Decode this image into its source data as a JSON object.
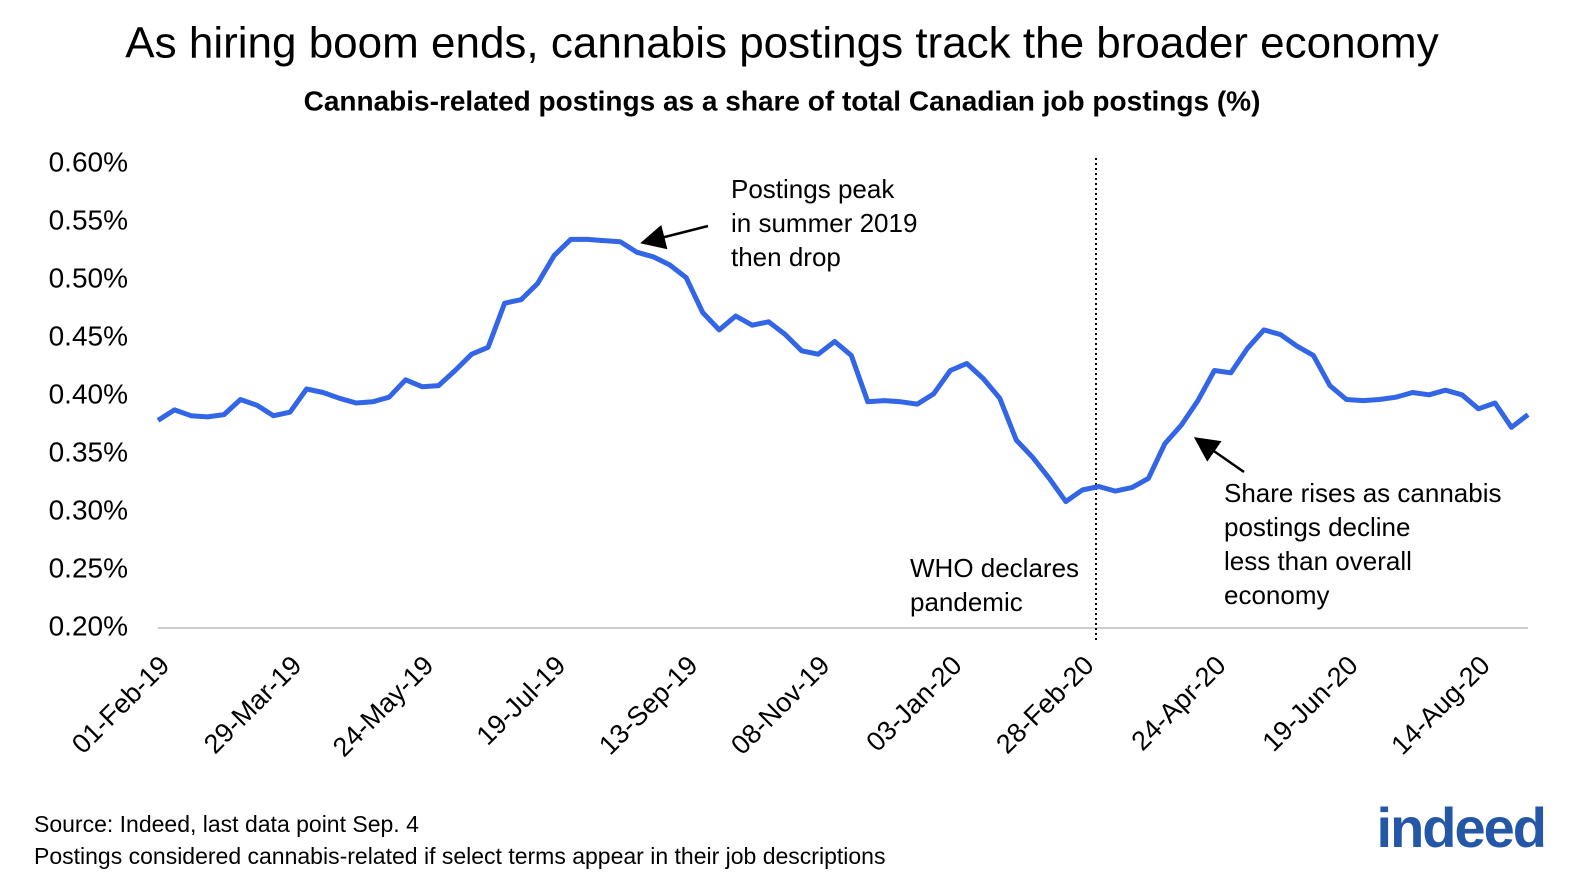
{
  "chart_data": {
    "type": "line",
    "title": "As hiring boom ends, cannabis postings track the broader economy",
    "subtitle": "Cannabis-related postings as a share of total Canadian job postings (%)",
    "categories": [
      "01-Feb-19",
      null,
      null,
      null,
      null,
      null,
      null,
      null,
      "29-Mar-19",
      null,
      null,
      null,
      null,
      null,
      null,
      null,
      "24-May-19",
      null,
      null,
      null,
      null,
      null,
      null,
      null,
      "19-Jul-19",
      null,
      null,
      null,
      null,
      null,
      null,
      null,
      "13-Sep-19",
      null,
      null,
      null,
      null,
      null,
      null,
      null,
      "08-Nov-19",
      null,
      null,
      null,
      null,
      null,
      null,
      null,
      "03-Jan-20",
      null,
      null,
      null,
      null,
      null,
      null,
      null,
      "28-Feb-20",
      null,
      null,
      null,
      null,
      null,
      null,
      null,
      "24-Apr-20",
      null,
      null,
      null,
      null,
      null,
      null,
      null,
      "19-Jun-20",
      null,
      null,
      null,
      null,
      null,
      null,
      null,
      "14-Aug-20",
      null,
      null,
      null
    ],
    "series": [
      {
        "color": "#3366e6",
        "values": [
          0.379,
          0.388,
          0.383,
          0.382,
          0.384,
          0.397,
          0.392,
          0.383,
          0.386,
          0.406,
          0.403,
          0.398,
          0.394,
          0.395,
          0.399,
          0.414,
          0.408,
          0.409,
          0.422,
          0.436,
          0.442,
          0.48,
          0.483,
          0.497,
          0.521,
          0.535,
          0.535,
          0.534,
          0.533,
          0.524,
          0.52,
          0.513,
          0.502,
          0.472,
          0.457,
          0.469,
          0.461,
          0.464,
          0.453,
          0.439,
          0.436,
          0.447,
          0.435,
          0.395,
          0.396,
          0.395,
          0.393,
          0.402,
          0.422,
          0.428,
          0.415,
          0.398,
          0.362,
          0.347,
          0.329,
          0.309,
          0.319,
          0.322,
          0.318,
          0.321,
          0.329,
          0.359,
          0.375,
          0.396,
          0.422,
          0.42,
          0.441,
          0.457,
          0.453,
          0.443,
          0.435,
          0.409,
          0.397,
          0.396,
          0.397,
          0.399,
          0.403,
          0.401,
          0.405,
          0.401,
          0.389,
          0.394,
          0.373,
          0.384
        ]
      }
    ],
    "ylim": [
      0.2,
      0.6
    ],
    "yticks": [
      {
        "value": 0.2,
        "label": "0.20%"
      },
      {
        "value": 0.25,
        "label": "0.25%"
      },
      {
        "value": 0.3,
        "label": "0.30%"
      },
      {
        "value": 0.35,
        "label": "0.35%"
      },
      {
        "value": 0.4,
        "label": "0.40%"
      },
      {
        "value": 0.45,
        "label": "0.45%"
      },
      {
        "value": 0.5,
        "label": "0.50%"
      },
      {
        "value": 0.55,
        "label": "0.55%"
      },
      {
        "value": 0.6,
        "label": "0.60%"
      }
    ],
    "grid": false,
    "annotations": [
      {
        "lines": [
          "Postings peak",
          "in summer 2019",
          "then drop"
        ]
      },
      {
        "lines": [
          "WHO declares",
          "pandemic"
        ]
      },
      {
        "lines": [
          "Share rises as cannabis",
          "postings decline",
          "less than overall",
          "economy"
        ]
      }
    ],
    "source": [
      "Source: Indeed, last data point Sep. 4",
      "Postings considered cannabis-related if select terms appear in their job descriptions"
    ],
    "logo": "indeed"
  }
}
